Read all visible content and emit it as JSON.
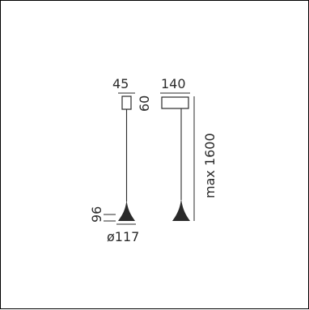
{
  "dimensions": {
    "canopy_width": "45",
    "canopy_height": "60",
    "side_width": "140",
    "max_length": "max 1600",
    "shade_height": "96",
    "shade_diameter": "ø117"
  },
  "colors": {
    "line": "#2a2a2a",
    "shade": "#2a2a2a",
    "text": "#2a2a2a"
  }
}
